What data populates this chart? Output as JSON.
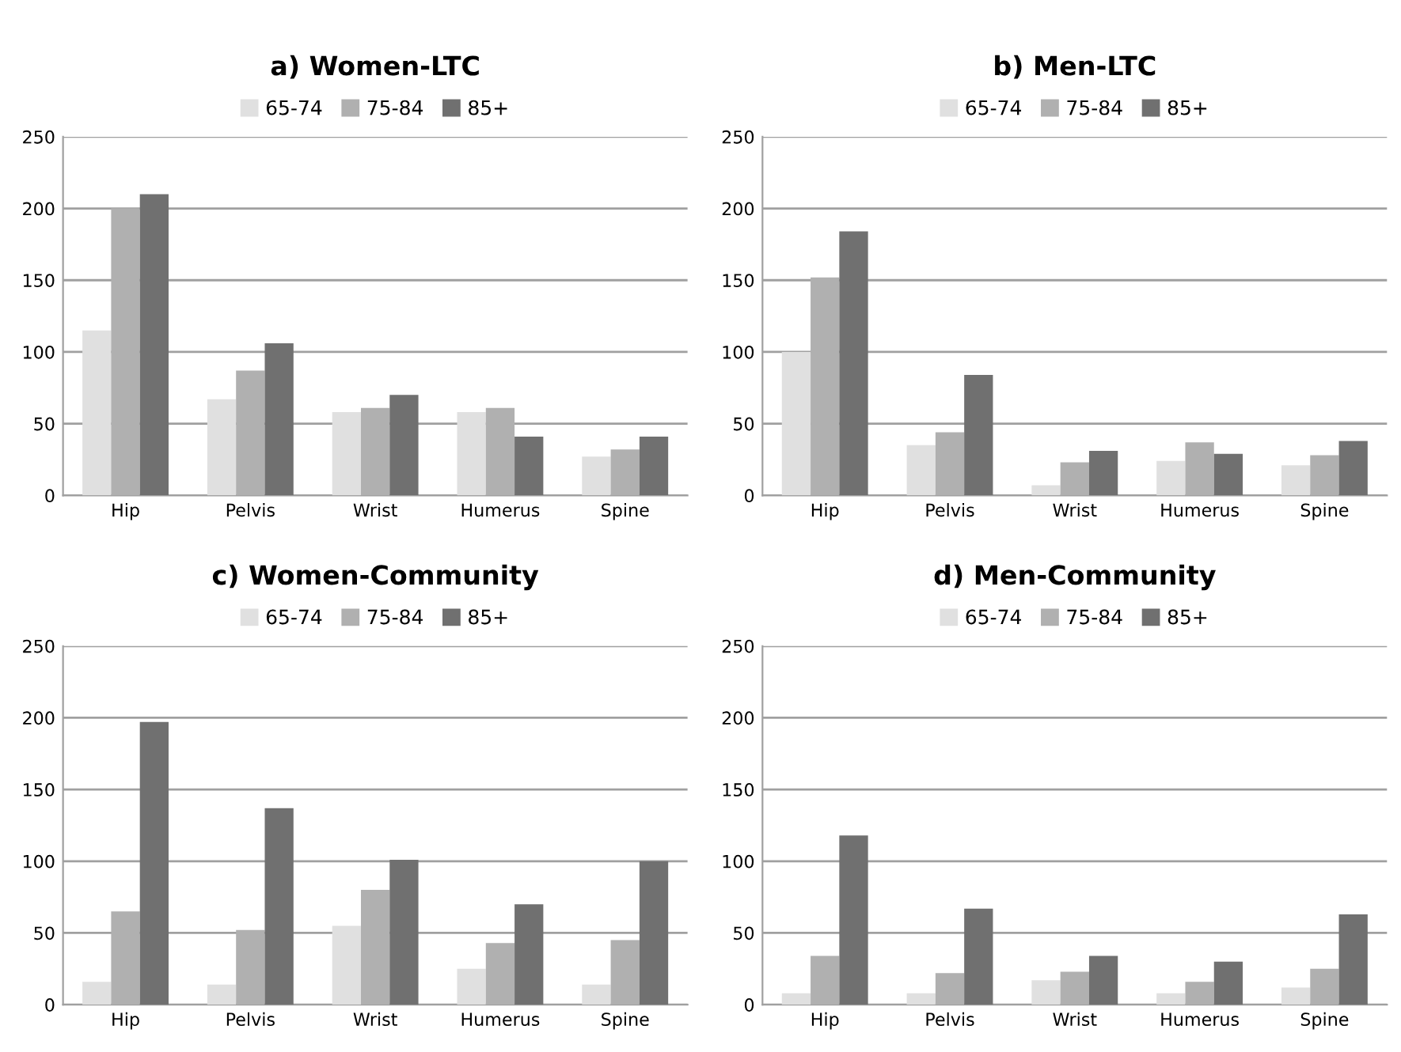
{
  "chart_data": [
    {
      "type": "bar",
      "title": "a) Women-LTC",
      "categories": [
        "Hip",
        "Pelvis",
        "Wrist",
        "Humerus",
        "Spine"
      ],
      "ylim": [
        0,
        250
      ],
      "yticks": [
        0,
        50,
        100,
        150,
        200,
        250
      ],
      "grid": "y",
      "legend": "top",
      "series": [
        {
          "name": "65-74",
          "color": "#e0e0e0",
          "values": [
            115,
            67,
            58,
            58,
            27
          ]
        },
        {
          "name": "75-84",
          "color": "#b0b0b0",
          "values": [
            200,
            87,
            61,
            61,
            32
          ]
        },
        {
          "name": "85+",
          "color": "#707070",
          "values": [
            210,
            106,
            70,
            41,
            41
          ]
        }
      ]
    },
    {
      "type": "bar",
      "title": "b) Men-LTC",
      "categories": [
        "Hip",
        "Pelvis",
        "Wrist",
        "Humerus",
        "Spine"
      ],
      "ylim": [
        0,
        250
      ],
      "yticks": [
        0,
        50,
        100,
        150,
        200,
        250
      ],
      "grid": "y",
      "legend": "top",
      "series": [
        {
          "name": "65-74",
          "color": "#e0e0e0",
          "values": [
            100,
            35,
            7,
            24,
            21
          ]
        },
        {
          "name": "75-84",
          "color": "#b0b0b0",
          "values": [
            152,
            44,
            23,
            37,
            28
          ]
        },
        {
          "name": "85+",
          "color": "#707070",
          "values": [
            184,
            84,
            31,
            29,
            38
          ]
        }
      ]
    },
    {
      "type": "bar",
      "title": "c) Women-Community",
      "categories": [
        "Hip",
        "Pelvis",
        "Wrist",
        "Humerus",
        "Spine"
      ],
      "ylim": [
        0,
        250
      ],
      "yticks": [
        0,
        50,
        100,
        150,
        200,
        250
      ],
      "grid": "y",
      "legend": "top",
      "series": [
        {
          "name": "65-74",
          "color": "#e0e0e0",
          "values": [
            16,
            14,
            55,
            25,
            14
          ]
        },
        {
          "name": "75-84",
          "color": "#b0b0b0",
          "values": [
            65,
            52,
            80,
            43,
            45
          ]
        },
        {
          "name": "85+",
          "color": "#707070",
          "values": [
            197,
            137,
            101,
            70,
            100
          ]
        }
      ]
    },
    {
      "type": "bar",
      "title": "d) Men-Community",
      "categories": [
        "Hip",
        "Pelvis",
        "Wrist",
        "Humerus",
        "Spine"
      ],
      "ylim": [
        0,
        250
      ],
      "yticks": [
        0,
        50,
        100,
        150,
        200,
        250
      ],
      "grid": "y",
      "legend": "top",
      "series": [
        {
          "name": "65-74",
          "color": "#e0e0e0",
          "values": [
            8,
            8,
            17,
            8,
            12
          ]
        },
        {
          "name": "75-84",
          "color": "#b0b0b0",
          "values": [
            34,
            22,
            23,
            16,
            25
          ]
        },
        {
          "name": "85+",
          "color": "#707070",
          "values": [
            118,
            67,
            34,
            30,
            63
          ]
        }
      ]
    }
  ]
}
